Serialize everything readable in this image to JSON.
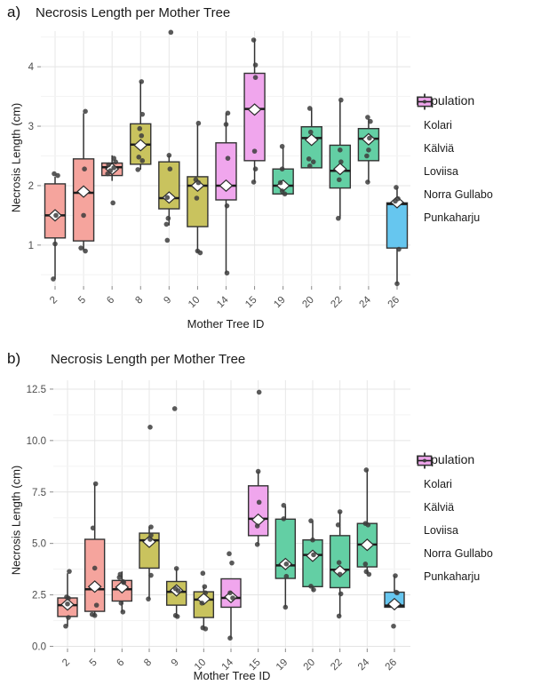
{
  "legend": {
    "title": "Population",
    "items": [
      {
        "label": "Kolari",
        "color": "#F5A49D"
      },
      {
        "label": "Kälviä",
        "color": "#C9C35E"
      },
      {
        "label": "Loviisa",
        "color": "#63CFA4"
      },
      {
        "label": "Norra Gullabo",
        "color": "#66C6EF"
      },
      {
        "label": "Punkaharju",
        "color": "#F0A6ED"
      }
    ],
    "stroke_color": "#333333"
  },
  "chart_data": [
    {
      "id": "a",
      "type": "boxplot",
      "tag": "a)",
      "title": "Necrosis Length per Mother Tree",
      "xlabel": "Mother Tree ID",
      "ylabel": "Necrosis Length (cm)",
      "ylim": [
        0.31,
        4.6
      ],
      "yticks": [
        {
          "v": 1,
          "label": "1"
        },
        {
          "v": 2,
          "label": "2"
        },
        {
          "v": 3,
          "label": "3"
        },
        {
          "v": 4,
          "label": "4"
        }
      ],
      "yminor": [
        0.5,
        1.5,
        2.5,
        3.5,
        4.5
      ],
      "grid": true,
      "legend_position": "right",
      "categories": [
        "2",
        "5",
        "6",
        "8",
        "9",
        "10",
        "14",
        "15",
        "19",
        "20",
        "22",
        "24",
        "26"
      ],
      "boxes": [
        {
          "tree": "2",
          "population": "Kolari",
          "q1": 1.12,
          "median": 1.5,
          "q3": 2.03,
          "whisker_low": 0.43,
          "whisker_high": 2.15,
          "mean": 1.5,
          "points": [
            [
              2.2,
              -1
            ],
            [
              2.17,
              3
            ],
            [
              1.5,
              1
            ],
            [
              1.02,
              0
            ],
            [
              0.43,
              -2
            ]
          ]
        },
        {
          "tree": "5",
          "population": "Kolari",
          "q1": 1.07,
          "median": 1.88,
          "q3": 2.45,
          "whisker_low": 0.9,
          "whisker_high": 3.22,
          "mean": 1.9,
          "points": [
            [
              3.25,
              2
            ],
            [
              2.28,
              1
            ],
            [
              1.5,
              0
            ],
            [
              0.95,
              -3
            ],
            [
              0.9,
              2
            ]
          ]
        },
        {
          "tree": "6",
          "population": "Kolari",
          "q1": 2.17,
          "median": 2.31,
          "q3": 2.38,
          "whisker_low": 2.08,
          "whisker_high": 2.51,
          "mean": 2.28,
          "points": [
            [
              2.46,
              2
            ],
            [
              2.4,
              4
            ],
            [
              2.35,
              -4
            ],
            [
              2.3,
              2
            ],
            [
              2.25,
              -2
            ],
            [
              2.2,
              -5
            ],
            [
              1.71,
              1
            ]
          ]
        },
        {
          "tree": "8",
          "population": "Kälviä",
          "q1": 2.36,
          "median": 2.69,
          "q3": 3.04,
          "whisker_low": 2.27,
          "whisker_high": 3.75,
          "mean": 2.68,
          "points": [
            [
              3.75,
              1
            ],
            [
              3.2,
              2
            ],
            [
              2.96,
              -1
            ],
            [
              2.84,
              1
            ],
            [
              2.48,
              -2
            ],
            [
              2.42,
              2
            ],
            [
              2.27,
              -3
            ]
          ]
        },
        {
          "tree": "9",
          "population": "Kälviä",
          "q1": 1.61,
          "median": 1.79,
          "q3": 2.4,
          "whisker_low": 1.33,
          "whisker_high": 2.51,
          "mean": 1.8,
          "points": [
            [
              4.58,
              2
            ],
            [
              2.51,
              0
            ],
            [
              2.28,
              1
            ],
            [
              1.8,
              -2
            ],
            [
              1.45,
              -1
            ],
            [
              1.35,
              -3
            ],
            [
              1.08,
              -2
            ]
          ]
        },
        {
          "tree": "10",
          "population": "Kälviä",
          "q1": 1.31,
          "median": 2.0,
          "q3": 2.15,
          "whisker_low": 0.88,
          "whisker_high": 3.03,
          "mean": 2.0,
          "points": [
            [
              3.05,
              1
            ],
            [
              2.1,
              -2
            ],
            [
              2.05,
              1
            ],
            [
              1.79,
              -1
            ],
            [
              0.9,
              0
            ],
            [
              0.87,
              3
            ]
          ]
        },
        {
          "tree": "14",
          "population": "Punkaharju",
          "q1": 1.76,
          "median": 2.0,
          "q3": 2.72,
          "whisker_low": 0.53,
          "whisker_high": 3.22,
          "mean": 2.0,
          "points": [
            [
              3.22,
              2
            ],
            [
              3.03,
              0
            ],
            [
              2.46,
              2
            ],
            [
              1.66,
              1
            ],
            [
              0.53,
              1
            ]
          ]
        },
        {
          "tree": "15",
          "population": "Punkaharju",
          "q1": 2.42,
          "median": 3.29,
          "q3": 3.89,
          "whisker_low": 2.06,
          "whisker_high": 4.47,
          "mean": 3.28,
          "points": [
            [
              4.45,
              -1
            ],
            [
              4.03,
              1
            ],
            [
              3.82,
              1
            ],
            [
              2.58,
              0
            ],
            [
              2.28,
              1
            ],
            [
              2.06,
              -1
            ]
          ]
        },
        {
          "tree": "19",
          "population": "Loviisa",
          "q1": 1.86,
          "median": 2.0,
          "q3": 2.28,
          "whisker_low": 1.86,
          "whisker_high": 2.64,
          "mean": 2.0,
          "points": [
            [
              2.66,
              -1
            ],
            [
              2.28,
              -1
            ],
            [
              2.05,
              -3
            ],
            [
              1.91,
              -1
            ],
            [
              1.86,
              2
            ]
          ]
        },
        {
          "tree": "20",
          "population": "Loviisa",
          "q1": 2.3,
          "median": 2.8,
          "q3": 2.99,
          "whisker_low": 2.3,
          "whisker_high": 3.31,
          "mean": 2.77,
          "points": [
            [
              3.3,
              -2
            ],
            [
              2.9,
              -1
            ],
            [
              2.45,
              -3
            ],
            [
              2.4,
              2
            ],
            [
              2.33,
              -2
            ]
          ]
        },
        {
          "tree": "22",
          "population": "Loviisa",
          "q1": 1.96,
          "median": 2.25,
          "q3": 2.68,
          "whisker_low": 1.45,
          "whisker_high": 3.43,
          "mean": 2.28,
          "points": [
            [
              3.44,
              1
            ],
            [
              2.6,
              0
            ],
            [
              2.4,
              1
            ],
            [
              2.1,
              -1
            ],
            [
              1.45,
              -2
            ]
          ]
        },
        {
          "tree": "24",
          "population": "Loviisa",
          "q1": 2.42,
          "median": 2.79,
          "q3": 2.96,
          "whisker_low": 2.06,
          "whisker_high": 3.12,
          "mean": 2.78,
          "points": [
            [
              3.15,
              -1
            ],
            [
              3.08,
              2
            ],
            [
              2.8,
              1
            ],
            [
              2.6,
              0
            ],
            [
              2.5,
              -2
            ],
            [
              2.06,
              -1
            ]
          ]
        },
        {
          "tree": "26",
          "population": "Norra Gullabo",
          "q1": 0.95,
          "median": 1.69,
          "q3": 1.71,
          "whisker_low": 0.35,
          "whisker_high": 1.97,
          "mean": 1.72,
          "points": [
            [
              1.97,
              -1
            ],
            [
              1.78,
              1
            ],
            [
              1.74,
              -2
            ],
            [
              0.93,
              2
            ],
            [
              0.35,
              0
            ]
          ]
        }
      ]
    },
    {
      "id": "b",
      "type": "boxplot",
      "tag": "b)",
      "title": "Necrosis Length per Mother Tree",
      "xlabel": "Mother Tree ID",
      "ylabel": "Necrosis Length (cm)",
      "ylim": [
        -0.11,
        12.93
      ],
      "yticks": [
        {
          "v": 0,
          "label": "0.0"
        },
        {
          "v": 2.5,
          "label": "2.5"
        },
        {
          "v": 5,
          "label": "5.0"
        },
        {
          "v": 7.5,
          "label": "7.5"
        },
        {
          "v": 10,
          "label": "10.0"
        },
        {
          "v": 12.5,
          "label": "12.5"
        }
      ],
      "yminor": [
        1.25,
        3.75,
        6.25,
        8.75,
        11.25
      ],
      "grid": true,
      "legend_position": "right",
      "categories": [
        "2",
        "5",
        "6",
        "8",
        "9",
        "10",
        "14",
        "15",
        "19",
        "20",
        "22",
        "24",
        "26"
      ],
      "boxes": [
        {
          "tree": "2",
          "population": "Kolari",
          "q1": 1.45,
          "median": 2.0,
          "q3": 2.35,
          "whisker_low": 0.98,
          "whisker_high": 3.55,
          "mean": 2.03,
          "points": [
            [
              3.64,
              2
            ],
            [
              2.4,
              -1
            ],
            [
              2.34,
              1
            ],
            [
              2.06,
              0
            ],
            [
              1.4,
              1
            ],
            [
              0.98,
              -2
            ]
          ]
        },
        {
          "tree": "5",
          "population": "Kolari",
          "q1": 1.7,
          "median": 2.77,
          "q3": 5.2,
          "whisker_low": 1.47,
          "whisker_high": 7.9,
          "mean": 2.9,
          "points": [
            [
              7.9,
              1
            ],
            [
              5.75,
              -2
            ],
            [
              3.8,
              0
            ],
            [
              2.0,
              2
            ],
            [
              1.55,
              -3
            ],
            [
              1.5,
              0
            ]
          ]
        },
        {
          "tree": "6",
          "population": "Kolari",
          "q1": 2.2,
          "median": 2.77,
          "q3": 3.2,
          "whisker_low": 1.67,
          "whisker_high": 3.64,
          "mean": 2.87,
          "points": [
            [
              3.5,
              -2
            ],
            [
              3.35,
              -3
            ],
            [
              3.15,
              1
            ],
            [
              3.1,
              2
            ],
            [
              2.1,
              -1
            ],
            [
              1.67,
              1
            ]
          ]
        },
        {
          "tree": "8",
          "population": "Kälviä",
          "q1": 3.8,
          "median": 5.15,
          "q3": 5.5,
          "whisker_low": 2.3,
          "whisker_high": 5.82,
          "mean": 5.08,
          "points": [
            [
              10.65,
              1
            ],
            [
              5.8,
              2
            ],
            [
              5.4,
              2
            ],
            [
              5.2,
              1
            ],
            [
              3.45,
              2
            ],
            [
              2.3,
              -1
            ]
          ]
        },
        {
          "tree": "9",
          "population": "Kälviä",
          "q1": 2.0,
          "median": 2.65,
          "q3": 3.15,
          "whisker_low": 1.45,
          "whisker_high": 3.78,
          "mean": 2.72,
          "points": [
            [
              11.55,
              -2
            ],
            [
              3.78,
              0
            ],
            [
              2.8,
              -1
            ],
            [
              2.7,
              2
            ],
            [
              1.5,
              -1
            ],
            [
              1.45,
              1
            ]
          ]
        },
        {
          "tree": "10",
          "population": "Kälviä",
          "q1": 1.4,
          "median": 2.27,
          "q3": 2.65,
          "whisker_low": 0.85,
          "whisker_high": 2.9,
          "mean": 2.3,
          "points": [
            [
              3.55,
              -1
            ],
            [
              2.9,
              1
            ],
            [
              2.6,
              2
            ],
            [
              2.1,
              -2
            ],
            [
              0.9,
              -1
            ],
            [
              0.85,
              2
            ]
          ]
        },
        {
          "tree": "14",
          "population": "Punkaharju",
          "q1": 1.9,
          "median": 2.35,
          "q3": 3.28,
          "whisker_low": 0.4,
          "whisker_high": 3.28,
          "mean": 2.4,
          "points": [
            [
              4.5,
              -2
            ],
            [
              4.05,
              1
            ],
            [
              2.6,
              -1
            ],
            [
              2.35,
              2
            ],
            [
              0.4,
              -1
            ]
          ]
        },
        {
          "tree": "15",
          "population": "Punkaharju",
          "q1": 5.38,
          "median": 6.2,
          "q3": 7.8,
          "whisker_low": 4.95,
          "whisker_high": 8.5,
          "mean": 6.15,
          "points": [
            [
              12.35,
              1
            ],
            [
              8.5,
              0
            ],
            [
              7.0,
              1
            ],
            [
              5.85,
              -1
            ],
            [
              4.95,
              -1
            ]
          ]
        },
        {
          "tree": "19",
          "population": "Loviisa",
          "q1": 3.3,
          "median": 3.93,
          "q3": 6.18,
          "whisker_low": 1.9,
          "whisker_high": 6.8,
          "mean": 4.0,
          "points": [
            [
              6.85,
              -2
            ],
            [
              6.2,
              -2
            ],
            [
              4.0,
              1
            ],
            [
              3.4,
              1
            ],
            [
              1.9,
              0
            ]
          ]
        },
        {
          "tree": "20",
          "population": "Loviisa",
          "q1": 2.9,
          "median": 4.44,
          "q3": 5.17,
          "whisker_low": 2.7,
          "whisker_high": 6.1,
          "mean": 4.4,
          "points": [
            [
              6.1,
              -2
            ],
            [
              5.17,
              0
            ],
            [
              4.45,
              1
            ],
            [
              2.92,
              -2
            ],
            [
              2.75,
              1
            ]
          ]
        },
        {
          "tree": "22",
          "population": "Loviisa",
          "q1": 2.85,
          "median": 3.72,
          "q3": 5.38,
          "whisker_low": 1.47,
          "whisker_high": 6.54,
          "mean": 3.65,
          "points": [
            [
              6.54,
              0
            ],
            [
              5.9,
              -2
            ],
            [
              4.07,
              -1
            ],
            [
              3.5,
              0
            ],
            [
              2.55,
              1
            ],
            [
              1.47,
              -1
            ]
          ]
        },
        {
          "tree": "24",
          "population": "Loviisa",
          "q1": 3.86,
          "median": 4.95,
          "q3": 5.97,
          "whisker_low": 3.5,
          "whisker_high": 8.57,
          "mean": 4.93,
          "points": [
            [
              8.57,
              -1
            ],
            [
              5.97,
              -2
            ],
            [
              5.9,
              1
            ],
            [
              4.0,
              -2
            ],
            [
              3.63,
              -1
            ],
            [
              3.5,
              2
            ]
          ]
        },
        {
          "tree": "26",
          "population": "Norra Gullabo",
          "q1": 1.9,
          "median": 1.98,
          "q3": 2.63,
          "whisker_low": 1.9,
          "whisker_high": 3.43,
          "mean": 2.05,
          "points": [
            [
              3.43,
              1
            ],
            [
              2.63,
              2
            ],
            [
              2.6,
              3
            ],
            [
              0.98,
              -1
            ]
          ]
        }
      ]
    }
  ]
}
